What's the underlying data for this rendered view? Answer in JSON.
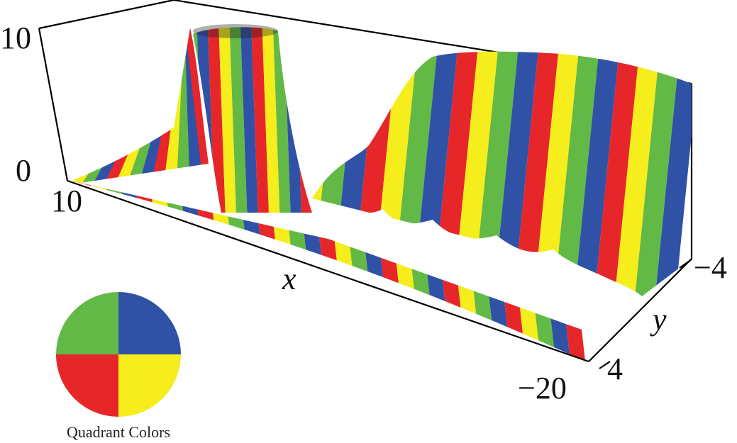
{
  "chart_data": {
    "type": "surface-3d",
    "title": "",
    "coloring": "phase-quadrants",
    "axes": {
      "x": {
        "label": "x",
        "range": [
          10,
          -20
        ],
        "ticks": [
          {
            "value": 10,
            "label": "10"
          },
          {
            "value": -20,
            "label": "−20"
          }
        ]
      },
      "y": {
        "label": "y",
        "range": [
          -4,
          4
        ],
        "ticks": [
          {
            "value": -4,
            "label": "−4"
          },
          {
            "value": 4,
            "label": "4"
          }
        ]
      },
      "z": {
        "label": "",
        "range": [
          0,
          10
        ],
        "ticks": [
          {
            "value": 0,
            "label": "0"
          },
          {
            "value": 10,
            "label": "10"
          }
        ]
      }
    },
    "features": [
      {
        "kind": "pole",
        "x": 4,
        "y": 0
      },
      {
        "kind": "plateau",
        "x_range": [
          -20,
          -6
        ],
        "height_approx": 8
      }
    ],
    "legend": {
      "caption": "Quadrant Colors",
      "placement": "bottom-left",
      "quadrants": [
        {
          "position": "top-left",
          "color": "#63b946"
        },
        {
          "position": "top-right",
          "color": "#3052a6"
        },
        {
          "position": "bottom-left",
          "color": "#e7262a"
        },
        {
          "position": "bottom-right",
          "color": "#f5ed1c"
        }
      ]
    },
    "band_colors": [
      "#3052a6",
      "#e7262a",
      "#f5ed1c",
      "#63b946"
    ]
  }
}
